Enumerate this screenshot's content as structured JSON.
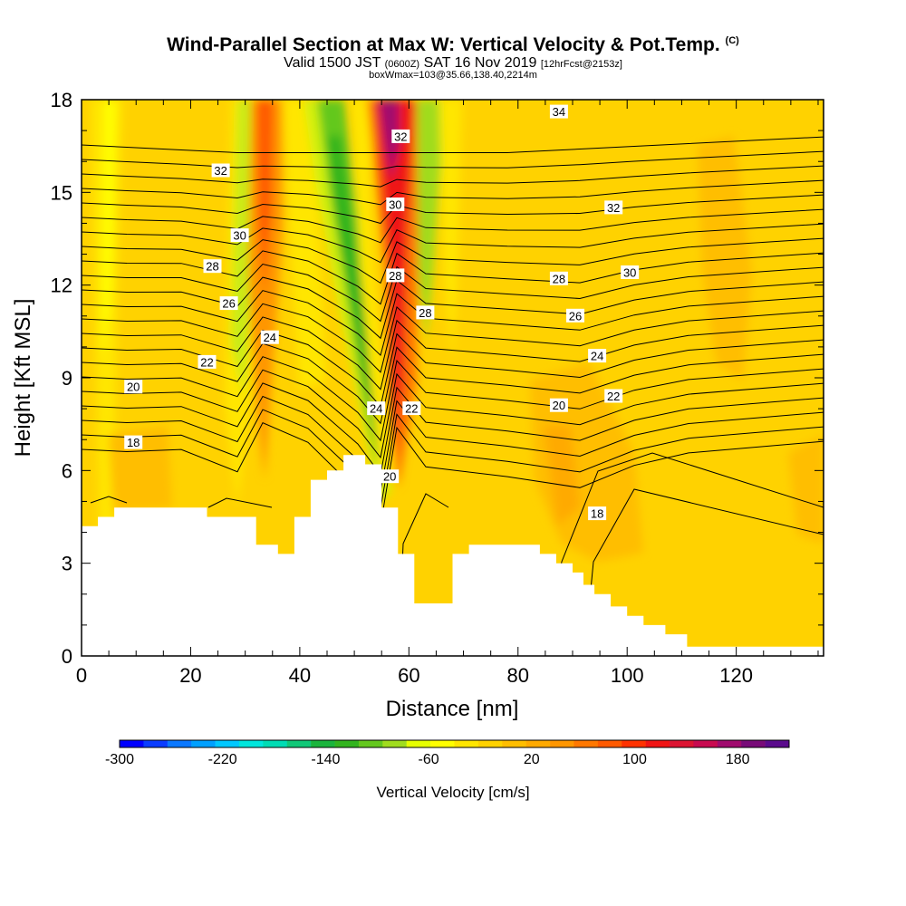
{
  "title": "Wind-Parallel Section at Max W: Vertical Velocity & Pot.Temp.",
  "title_mark": "(C)",
  "subtitle_main": "Valid 1500 JST",
  "subtitle_utc": "(0600Z)",
  "subtitle_date": "SAT 16 Nov 2019",
  "subtitle_fcst": "[12hrFcst@2153z]",
  "subtitle2": "boxWmax=103@35.66,138.40,2214m",
  "chart_data": {
    "type": "contour",
    "xlabel": "Distance [nm]",
    "ylabel": "Height [Kft MSL]",
    "xlim": [
      0,
      136
    ],
    "ylim": [
      0,
      18
    ],
    "x_ticks": [
      "0",
      "20",
      "40",
      "60",
      "80",
      "100",
      "120"
    ],
    "y_ticks": [
      "0",
      "3",
      "6",
      "9",
      "12",
      "15",
      "18"
    ],
    "colorbar": {
      "title": "Vertical Velocity [cm/s]",
      "range": [
        -300,
        220
      ],
      "tick_values": [
        "-300",
        "-220",
        "-140",
        "-60",
        "20",
        "100",
        "180"
      ],
      "colors": [
        "#0000ff",
        "#0a3cff",
        "#0a78ff",
        "#00a0ff",
        "#00c8ff",
        "#00e6dc",
        "#00dcb4",
        "#10c878",
        "#1ab43c",
        "#32b41e",
        "#64c81e",
        "#a0dc1e",
        "#e6ff00",
        "#ffff00",
        "#ffe600",
        "#ffd200",
        "#ffbe00",
        "#ffaa00",
        "#ff9600",
        "#ff7800",
        "#ff5a00",
        "#ff3200",
        "#f01414",
        "#dc1432",
        "#c80a50",
        "#a00a6e",
        "#780a78",
        "#5a0a8c"
      ]
    },
    "theta_labels": [
      {
        "text": "34",
        "x": 87.5,
        "y": 17.6
      },
      {
        "text": "32",
        "x": 58.5,
        "y": 16.8
      },
      {
        "text": "32",
        "x": 25.5,
        "y": 15.7
      },
      {
        "text": "32",
        "x": 97.5,
        "y": 14.5
      },
      {
        "text": "30",
        "x": 57.5,
        "y": 14.6
      },
      {
        "text": "30",
        "x": 29.0,
        "y": 13.6
      },
      {
        "text": "30",
        "x": 100.5,
        "y": 12.4
      },
      {
        "text": "28",
        "x": 24.0,
        "y": 12.6
      },
      {
        "text": "28",
        "x": 57.5,
        "y": 12.3
      },
      {
        "text": "28",
        "x": 87.5,
        "y": 12.2
      },
      {
        "text": "28",
        "x": 63.0,
        "y": 11.1
      },
      {
        "text": "26",
        "x": 27.0,
        "y": 11.4
      },
      {
        "text": "26",
        "x": 90.5,
        "y": 11.0
      },
      {
        "text": "24",
        "x": 34.5,
        "y": 10.3
      },
      {
        "text": "24",
        "x": 94.5,
        "y": 9.7
      },
      {
        "text": "24",
        "x": 54.0,
        "y": 8.0
      },
      {
        "text": "22",
        "x": 23.0,
        "y": 9.5
      },
      {
        "text": "22",
        "x": 60.5,
        "y": 8.0
      },
      {
        "text": "22",
        "x": 97.5,
        "y": 8.4
      },
      {
        "text": "20",
        "x": 9.5,
        "y": 8.7
      },
      {
        "text": "20",
        "x": 87.5,
        "y": 8.1
      },
      {
        "text": "20",
        "x": 56.5,
        "y": 5.8
      },
      {
        "text": "18",
        "x": 9.5,
        "y": 6.9
      },
      {
        "text": "18",
        "x": 94.5,
        "y": 4.6
      }
    ],
    "terrain": [
      [
        0,
        4.2
      ],
      [
        3,
        4.2
      ],
      [
        3,
        4.5
      ],
      [
        6,
        4.5
      ],
      [
        6,
        4.8
      ],
      [
        23,
        4.8
      ],
      [
        23,
        4.5
      ],
      [
        32,
        4.5
      ],
      [
        32,
        3.6
      ],
      [
        36,
        3.6
      ],
      [
        36,
        3.3
      ],
      [
        39,
        3.3
      ],
      [
        39,
        4.5
      ],
      [
        42,
        4.5
      ],
      [
        42,
        5.7
      ],
      [
        45,
        5.7
      ],
      [
        45,
        6.0
      ],
      [
        48,
        6.0
      ],
      [
        48,
        6.5
      ],
      [
        52,
        6.5
      ],
      [
        52,
        6.2
      ],
      [
        55,
        6.2
      ],
      [
        55,
        4.8
      ],
      [
        58,
        4.8
      ],
      [
        58,
        3.3
      ],
      [
        61,
        3.3
      ],
      [
        61,
        1.7
      ],
      [
        68,
        1.7
      ],
      [
        68,
        3.3
      ],
      [
        71,
        3.3
      ],
      [
        71,
        3.6
      ],
      [
        84,
        3.6
      ],
      [
        84,
        3.3
      ],
      [
        87,
        3.3
      ],
      [
        87,
        3.0
      ],
      [
        90,
        3.0
      ],
      [
        90,
        2.7
      ],
      [
        92,
        2.7
      ],
      [
        92,
        2.3
      ],
      [
        94,
        2.3
      ],
      [
        94,
        2.0
      ],
      [
        97,
        2.0
      ],
      [
        97,
        1.6
      ],
      [
        100,
        1.6
      ],
      [
        100,
        1.3
      ],
      [
        103,
        1.3
      ],
      [
        103,
        1.0
      ],
      [
        107,
        1.0
      ],
      [
        107,
        0.7
      ],
      [
        111,
        0.7
      ],
      [
        111,
        0.3
      ],
      [
        136,
        0.3
      ]
    ]
  }
}
